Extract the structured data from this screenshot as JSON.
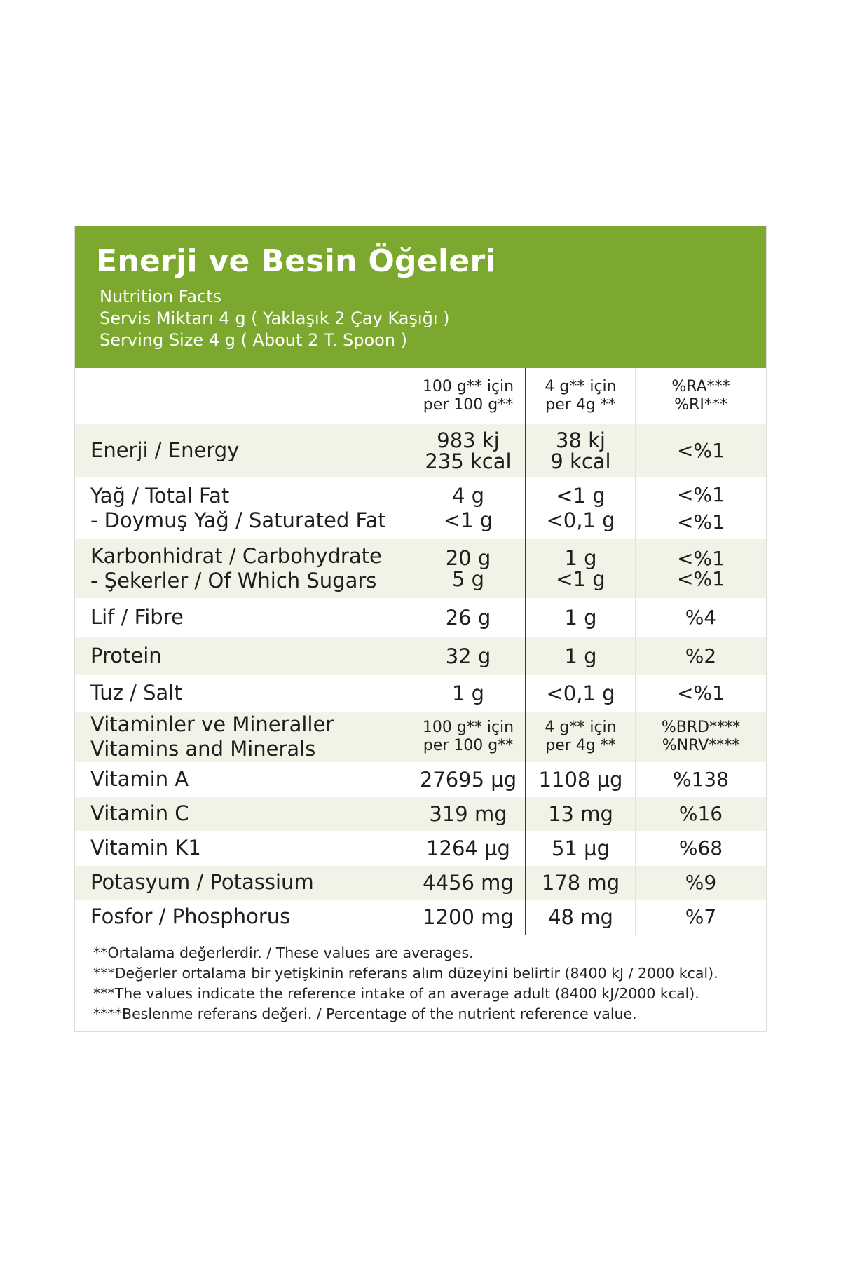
{
  "header": {
    "title": "Enerji ve Besin Öğeleri",
    "subtitle_en": "Nutrition Facts",
    "serving_tr": "Servis Miktarı 4 g ( Yaklaşık 2 Çay Kaşığı )",
    "serving_en": "Serving Size 4 g ( About 2 T. Spoon )"
  },
  "columns": {
    "per100_tr": "100 g** için",
    "per100_en": "per 100 g**",
    "perserv_tr": "4 g** için",
    "perserv_en": "per 4g **",
    "ri_tr": "%RA***",
    "ri_en": "%RI***"
  },
  "rows": [
    {
      "name": "Enerji / Energy",
      "per100_1": "983 kj",
      "per100_2": "235 kcal",
      "perserv_1": "38 kj",
      "perserv_2": "9 kcal",
      "ri": "<%1"
    },
    {
      "name_1": "Yağ / Total Fat",
      "name_2": "- Doymuş Yağ / Saturated Fat",
      "per100_1": "4 g",
      "per100_2": "<1 g",
      "perserv_1": "<1 g",
      "perserv_2": "<0,1 g",
      "ri_1": "<%1",
      "ri_2": "<%1"
    },
    {
      "name_1": "Karbonhidrat / Carbohydrate",
      "name_2": "- Şekerler / Of Which Sugars",
      "per100_1": "20 g",
      "per100_2": "5 g",
      "perserv_1": "1 g",
      "perserv_2": "<1 g",
      "ri_1": "<%1",
      "ri_2": "<%1"
    },
    {
      "name": "Lif / Fibre",
      "per100": "26 g",
      "perserv": "1 g",
      "ri": "%4"
    },
    {
      "name": "Protein",
      "per100": "32 g",
      "perserv": "1 g",
      "ri": "%2"
    },
    {
      "name": "Tuz / Salt",
      "per100": "1 g",
      "perserv": "<0,1 g",
      "ri": "<%1"
    },
    {
      "name_1": "Vitaminler ve Mineraller",
      "name_2": "Vitamins and Minerals",
      "per100_1": "100 g** için",
      "per100_2": "per 100 g**",
      "perserv_1": "4 g** için",
      "perserv_2": "per 4g **",
      "ri_1": "%BRD****",
      "ri_2": "%NRV****"
    },
    {
      "name": "Vitamin A",
      "per100": "27695 µg",
      "perserv": "1108 µg",
      "ri": "%138"
    },
    {
      "name": "Vitamin C",
      "per100": "319 mg",
      "perserv": "13 mg",
      "ri": "%16"
    },
    {
      "name": "Vitamin K1",
      "per100": "1264 µg",
      "perserv": "51 µg",
      "ri": "%68"
    },
    {
      "name": "Potasyum / Potassium",
      "per100": "4456 mg",
      "perserv": "178 mg",
      "ri": "%9"
    },
    {
      "name": "Fosfor / Phosphorus",
      "per100": "1200 mg",
      "perserv": "48 mg",
      "ri": "%7"
    }
  ],
  "footnotes": [
    "**Ortalama değerlerdir. / These values are averages.",
    "***Değerler ortalama bir yetişkinin referans alım düzeyini belirtir (8400 kJ / 2000 kcal).",
    "***The values indicate the reference intake of an average adult (8400 kJ/2000 kcal).",
    "****Beslenme referans değeri. / Percentage of the nutrient reference value."
  ],
  "colors": {
    "header_green": "#7da82f",
    "row_shade": "#eff4e6"
  }
}
